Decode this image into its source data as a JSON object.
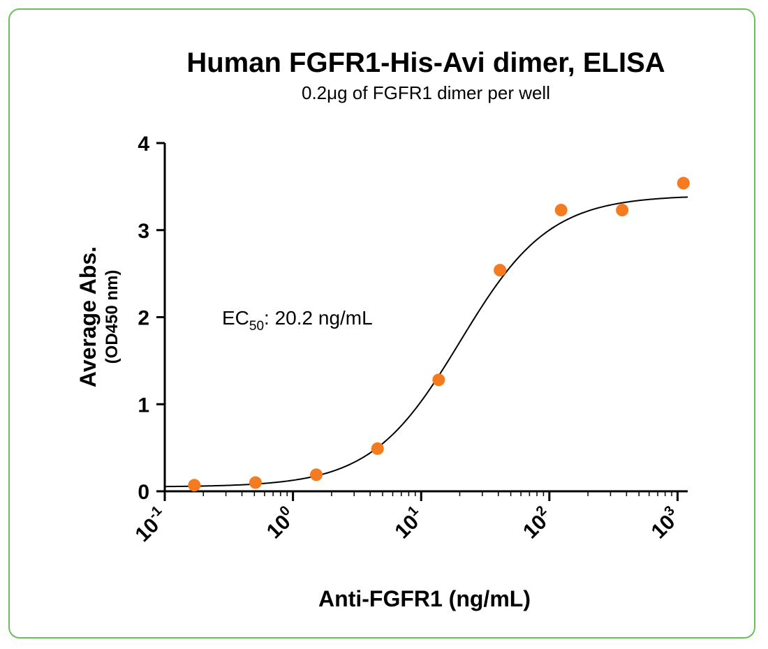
{
  "chart_data": {
    "type": "scatter",
    "title": "Human FGFR1-His-Avi dimer, ELISA",
    "subtitle": "0.2μg of FGFR1 dimer per well",
    "xlabel": "Anti-FGFR1 (ng/mL)",
    "ylabel": "Average Abs.",
    "ylabel_sub": "(OD450 nm)",
    "xscale": "log",
    "xlim": [
      0.1,
      1200
    ],
    "ylim": [
      0,
      4
    ],
    "y_ticks": [
      0,
      1,
      2,
      3,
      4
    ],
    "x_ticks": [
      {
        "value": 0.1,
        "base": "10",
        "exp": "-1"
      },
      {
        "value": 1,
        "base": "10",
        "exp": "0"
      },
      {
        "value": 10,
        "base": "10",
        "exp": "1"
      },
      {
        "value": 100,
        "base": "10",
        "exp": "2"
      },
      {
        "value": 1000,
        "base": "10",
        "exp": "3"
      }
    ],
    "series": [
      {
        "x": [
          0.17,
          0.51,
          1.52,
          4.57,
          13.7,
          41.2,
          123.5,
          370,
          1111
        ],
        "y": [
          0.07,
          0.1,
          0.19,
          0.49,
          1.28,
          2.54,
          3.23,
          3.23,
          3.54
        ],
        "color": "#f47b20"
      }
    ],
    "fit_curve": {
      "model": "4PL",
      "bottom": 0.05,
      "top": 3.4,
      "ec50": 20.2,
      "hill": 1.25,
      "color": "#000000"
    },
    "annotation": {
      "text_main": "EC",
      "text_sub": "50",
      "text_rest": ": 20.2 ng/mL"
    },
    "grid": false,
    "legend": "none"
  }
}
